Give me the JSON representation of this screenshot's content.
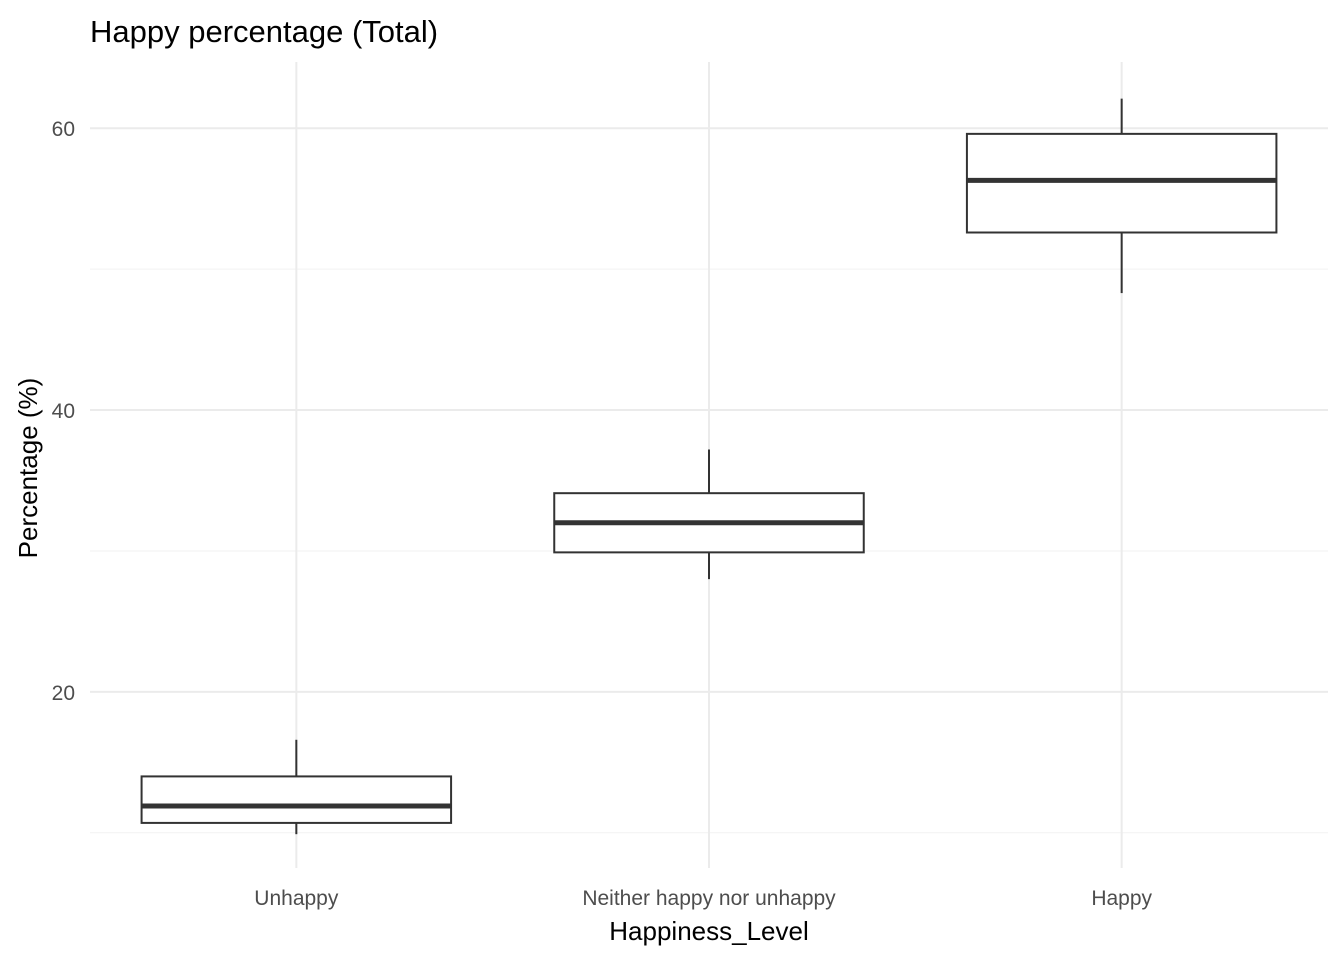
{
  "chart_data": {
    "type": "boxplot",
    "title": "Happy percentage (Total)",
    "xlabel": "Happiness_Level",
    "ylabel": "Percentage (%)",
    "categories": [
      "Unhappy",
      "Neither happy nor unhappy",
      "Happy"
    ],
    "y_ticks": [
      20,
      40,
      60
    ],
    "ylim": [
      7.5,
      64.7
    ],
    "grid": true,
    "boxes": [
      {
        "category": "Unhappy",
        "whisker_low": 9.9,
        "q1": 10.7,
        "median": 11.9,
        "q3": 14.0,
        "whisker_high": 16.6
      },
      {
        "category": "Neither happy nor unhappy",
        "whisker_low": 28.0,
        "q1": 29.9,
        "median": 32.0,
        "q3": 34.1,
        "whisker_high": 37.2
      },
      {
        "category": "Happy",
        "whisker_low": 48.3,
        "q1": 52.6,
        "median": 56.3,
        "q3": 59.6,
        "whisker_high": 62.1
      }
    ],
    "colors": {
      "box_stroke": "#333333",
      "grid": "#ebebeb",
      "tick_text": "#4d4d4d"
    }
  }
}
